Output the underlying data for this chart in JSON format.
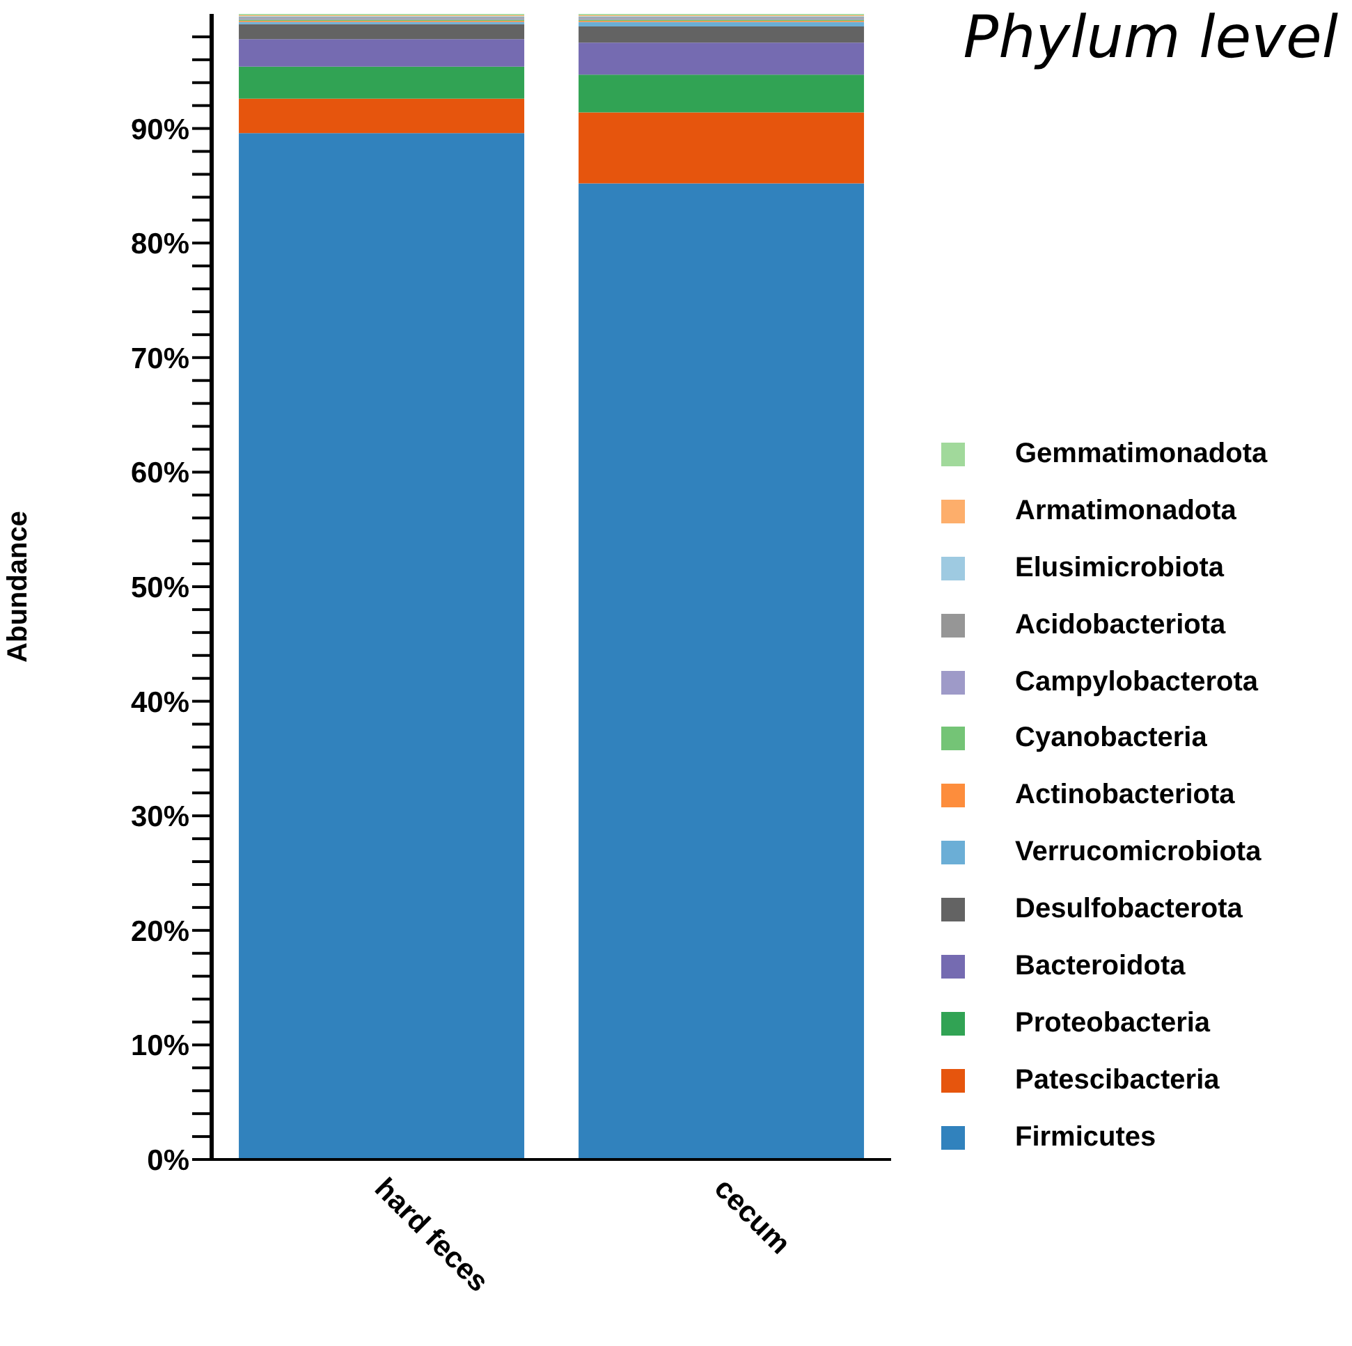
{
  "chart_data": {
    "type": "bar",
    "title": "Phylum level",
    "ylabel": "Abundance",
    "categories": [
      "hard feces",
      "cecum"
    ],
    "stacked": true,
    "legend": "right",
    "grid": false,
    "ylim": [
      0,
      100
    ],
    "yticks": [
      {
        "value": 0,
        "label": "0%"
      },
      {
        "value": 2,
        "label": null
      },
      {
        "value": 4,
        "label": null
      },
      {
        "value": 6,
        "label": null
      },
      {
        "value": 8,
        "label": null
      },
      {
        "value": 10,
        "label": "10%"
      },
      {
        "value": 12,
        "label": null
      },
      {
        "value": 14,
        "label": null
      },
      {
        "value": 16,
        "label": null
      },
      {
        "value": 18,
        "label": null
      },
      {
        "value": 20,
        "label": "20%"
      },
      {
        "value": 22,
        "label": null
      },
      {
        "value": 24,
        "label": null
      },
      {
        "value": 26,
        "label": null
      },
      {
        "value": 28,
        "label": null
      },
      {
        "value": 30,
        "label": "30%"
      },
      {
        "value": 32,
        "label": null
      },
      {
        "value": 34,
        "label": null
      },
      {
        "value": 36,
        "label": null
      },
      {
        "value": 38,
        "label": null
      },
      {
        "value": 40,
        "label": "40%"
      },
      {
        "value": 42,
        "label": null
      },
      {
        "value": 44,
        "label": null
      },
      {
        "value": 46,
        "label": null
      },
      {
        "value": 48,
        "label": null
      },
      {
        "value": 50,
        "label": "50%"
      },
      {
        "value": 52,
        "label": null
      },
      {
        "value": 54,
        "label": null
      },
      {
        "value": 56,
        "label": null
      },
      {
        "value": 58,
        "label": null
      },
      {
        "value": 60,
        "label": "60%"
      },
      {
        "value": 62,
        "label": null
      },
      {
        "value": 64,
        "label": null
      },
      {
        "value": 66,
        "label": null
      },
      {
        "value": 68,
        "label": null
      },
      {
        "value": 70,
        "label": "70%"
      },
      {
        "value": 72,
        "label": null
      },
      {
        "value": 74,
        "label": null
      },
      {
        "value": 76,
        "label": null
      },
      {
        "value": 78,
        "label": null
      },
      {
        "value": 80,
        "label": "80%"
      },
      {
        "value": 82,
        "label": null
      },
      {
        "value": 84,
        "label": null
      },
      {
        "value": 86,
        "label": null
      },
      {
        "value": 88,
        "label": null
      },
      {
        "value": 90,
        "label": "90%"
      },
      {
        "value": 92,
        "label": null
      },
      {
        "value": 94,
        "label": null
      },
      {
        "value": 96,
        "label": null
      },
      {
        "value": 98,
        "label": null
      }
    ],
    "series": [
      {
        "name": "Firmicutes",
        "color": "#3182bd",
        "values": [
          89.6,
          85.2
        ]
      },
      {
        "name": "Patescibacteria",
        "color": "#e6550d",
        "values": [
          3.0,
          6.2
        ]
      },
      {
        "name": "Proteobacteria",
        "color": "#31a354",
        "values": [
          2.8,
          3.3
        ]
      },
      {
        "name": "Bacteroidota",
        "color": "#756bb1",
        "values": [
          2.4,
          2.8
        ]
      },
      {
        "name": "Desulfobacterota",
        "color": "#636363",
        "values": [
          1.3,
          1.4
        ]
      },
      {
        "name": "Verrucomicrobiota",
        "color": "#6baed6",
        "values": [
          0.2,
          0.4
        ]
      },
      {
        "name": "Actinobacteriota",
        "color": "#fd8d3c",
        "values": [
          0.1,
          0.1
        ]
      },
      {
        "name": "Cyanobacteria",
        "color": "#74c476",
        "values": [
          0.1,
          0.1
        ]
      },
      {
        "name": "Campylobacterota",
        "color": "#9e9ac8",
        "values": [
          0.1,
          0.1
        ]
      },
      {
        "name": "Acidobacteriota",
        "color": "#969696",
        "values": [
          0.1,
          0.1
        ]
      },
      {
        "name": "Elusimicrobiota",
        "color": "#9ecae1",
        "values": [
          0.1,
          0.1
        ]
      },
      {
        "name": "Armatimonadota",
        "color": "#fdae6b",
        "values": [
          0.1,
          0.1
        ]
      },
      {
        "name": "Gemmatimonadota",
        "color": "#a1d99b",
        "values": [
          0.1,
          0.1
        ]
      }
    ]
  }
}
